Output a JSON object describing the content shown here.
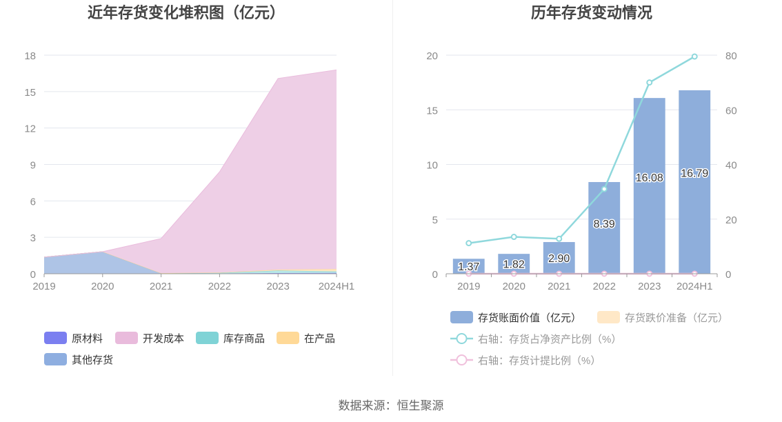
{
  "source_text": "数据来源：恒生聚源",
  "chart_data": [
    {
      "type": "area",
      "title": "近年存货变化堆积图（亿元）",
      "xlabel": "",
      "ylabel": "",
      "categories": [
        "2019",
        "2020",
        "2021",
        "2022",
        "2023",
        "2024H1"
      ],
      "ylim": [
        0,
        18
      ],
      "yticks": [
        0,
        3,
        6,
        9,
        12,
        15,
        18
      ],
      "grid": true,
      "legend_position": "bottom",
      "stacked": true,
      "series": [
        {
          "name": "原材料",
          "color": "#7b7ff0",
          "fill": "#8f92f2",
          "values": [
            0,
            0,
            0,
            0.01,
            0.02,
            0.02
          ]
        },
        {
          "name": "开发成本",
          "color": "#e9bbdc",
          "fill": "#eecfe6",
          "values": [
            0,
            0,
            2.85,
            8.29,
            15.74,
            16.4
          ]
        },
        {
          "name": "库存商品",
          "color": "#7fd3d6",
          "fill": "#b8e8e8",
          "values": [
            0,
            0,
            0,
            0.05,
            0.2,
            0.12
          ]
        },
        {
          "name": "在产品",
          "color": "#ffd997",
          "fill": "#ffe7bf",
          "values": [
            0,
            0,
            0,
            0.02,
            0.08,
            0.2
          ]
        },
        {
          "name": "其他存货",
          "color": "#8eaee0",
          "fill": "#aec4e6",
          "values": [
            1.37,
            1.82,
            0.05,
            0.02,
            0.04,
            0.05
          ]
        }
      ]
    },
    {
      "type": "bar+line",
      "title": "历年存货变动情况",
      "xlabel": "",
      "ylabel": "",
      "categories": [
        "2019",
        "2020",
        "2021",
        "2022",
        "2023",
        "2024H1"
      ],
      "ylim": [
        0,
        20
      ],
      "yticks": [
        0,
        5,
        10,
        15,
        20
      ],
      "y2lim": [
        0,
        80
      ],
      "y2ticks": [
        0,
        20,
        40,
        60,
        80
      ],
      "grid": true,
      "legend_position": "bottom",
      "bars": [
        {
          "name": "存货账面价值（亿元）",
          "color": "#8eaedb",
          "values": [
            1.37,
            1.82,
            2.9,
            8.39,
            16.08,
            16.79
          ],
          "labels": [
            "1.37",
            "1.82",
            "2.90",
            "8.39",
            "16.08",
            "16.79"
          ]
        },
        {
          "name": "存货跌价准备（亿元）",
          "color": "#ffe8c7",
          "values": [
            0,
            0,
            0,
            0,
            0,
            0
          ]
        }
      ],
      "lines": [
        {
          "name": "右轴：存货占净资产比例（%）",
          "color": "#8fd8dc",
          "axis": "right",
          "values": [
            11.2,
            13.5,
            12.8,
            31.0,
            70.0,
            79.5
          ]
        },
        {
          "name": "右轴：存货计提比例（%）",
          "color": "#f0c0dc",
          "axis": "right",
          "values": [
            0,
            0,
            0,
            0,
            0,
            0
          ]
        }
      ]
    }
  ]
}
